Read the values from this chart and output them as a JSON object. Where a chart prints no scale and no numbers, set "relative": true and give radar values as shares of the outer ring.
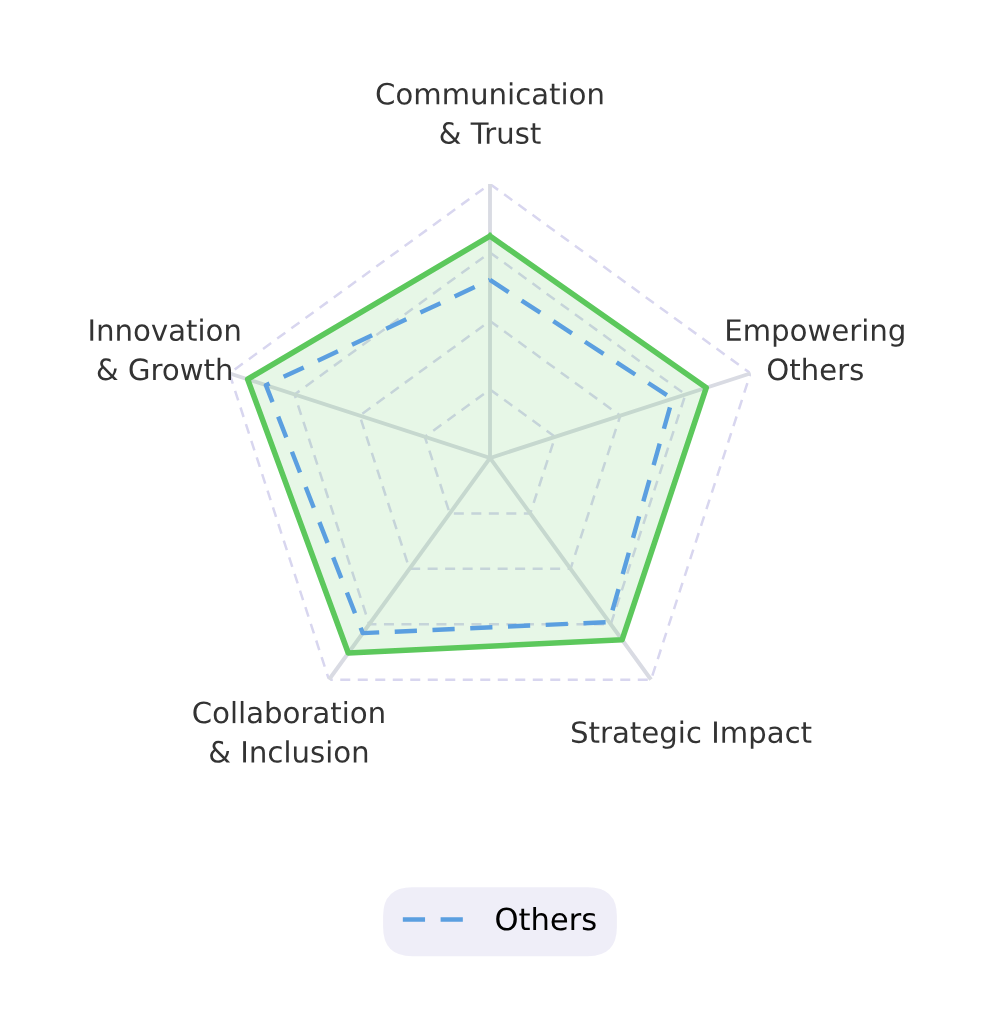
{
  "chart_data": {
    "type": "radar",
    "categories": [
      "Communication\n& Trust",
      "Empowering\nOthers",
      "Strategic Impact",
      "Collaboration\n& Inclusion",
      "Innovation\n& Growth"
    ],
    "relative": true,
    "grid": true,
    "legend": "bottom",
    "series": [
      {
        "color": "#5cc85c",
        "values": [
          0.81,
          0.83,
          0.82,
          0.88,
          0.93
        ],
        "line_style": "solid"
      },
      {
        "name": "Others",
        "color": "#5b9fe0",
        "values": [
          0.65,
          0.7,
          0.74,
          0.79,
          0.86
        ],
        "line_style": "dashed"
      }
    ]
  }
}
